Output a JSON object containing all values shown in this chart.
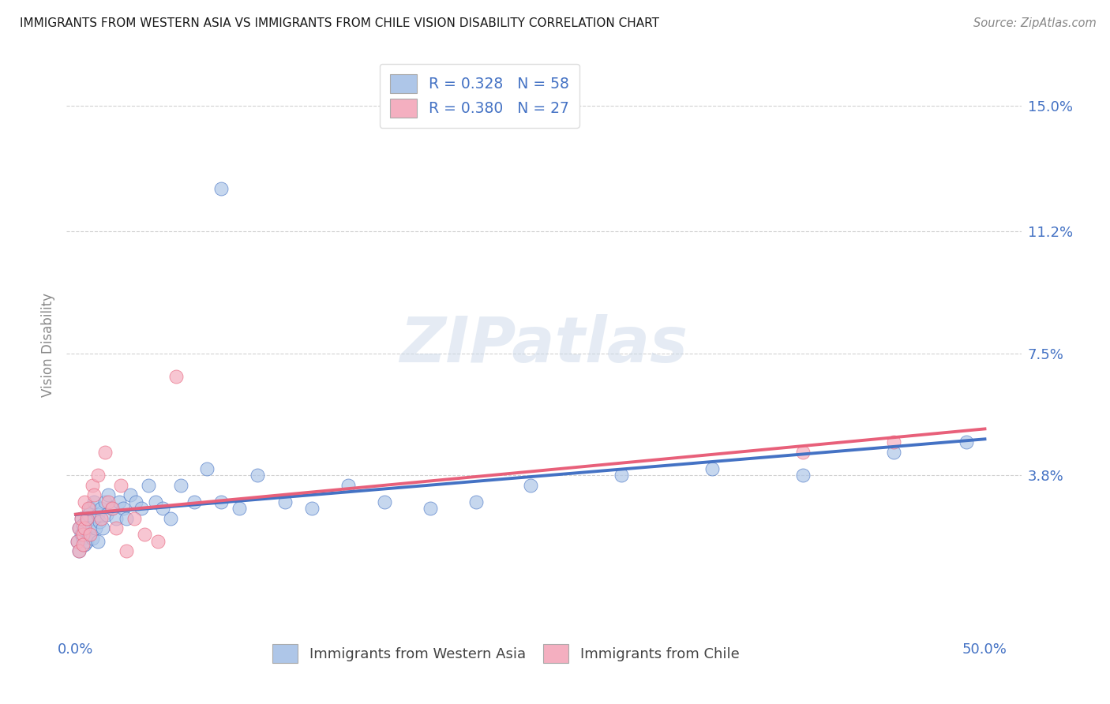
{
  "title": "IMMIGRANTS FROM WESTERN ASIA VS IMMIGRANTS FROM CHILE VISION DISABILITY CORRELATION CHART",
  "source": "Source: ZipAtlas.com",
  "ylabel": "Vision Disability",
  "ytick_labels": [
    "15.0%",
    "11.2%",
    "7.5%",
    "3.8%"
  ],
  "ytick_values": [
    0.15,
    0.112,
    0.075,
    0.038
  ],
  "xtick_labels": [
    "0.0%",
    "",
    "",
    "",
    "50.0%"
  ],
  "xtick_values": [
    0.0,
    0.125,
    0.25,
    0.375,
    0.5
  ],
  "xlim": [
    -0.005,
    0.52
  ],
  "ylim": [
    -0.01,
    0.165
  ],
  "legend_label1": "Immigrants from Western Asia",
  "legend_label2": "Immigrants from Chile",
  "R1": "0.328",
  "N1": "58",
  "R2": "0.380",
  "N2": "27",
  "color1": "#aec6e8",
  "color2": "#f4afc0",
  "line_color1": "#4472c4",
  "line_color2": "#e8607a",
  "title_color": "#1a1a1a",
  "axis_tick_color": "#4472c4",
  "ylabel_color": "#888888",
  "source_color": "#888888",
  "background_color": "#ffffff",
  "grid_color": "#cccccc",
  "watermark_zip_color": "#ccd9ea",
  "watermark_atlas_color": "#c0d0e5",
  "scatter1_x": [
    0.001,
    0.002,
    0.002,
    0.003,
    0.003,
    0.004,
    0.004,
    0.005,
    0.005,
    0.006,
    0.006,
    0.007,
    0.007,
    0.008,
    0.008,
    0.009,
    0.01,
    0.01,
    0.011,
    0.012,
    0.012,
    0.013,
    0.014,
    0.015,
    0.016,
    0.017,
    0.018,
    0.02,
    0.022,
    0.024,
    0.026,
    0.028,
    0.03,
    0.033,
    0.036,
    0.04,
    0.044,
    0.048,
    0.052,
    0.058,
    0.065,
    0.072,
    0.08,
    0.09,
    0.1,
    0.115,
    0.13,
    0.15,
    0.17,
    0.195,
    0.22,
    0.25,
    0.08,
    0.3,
    0.35,
    0.4,
    0.45,
    0.49
  ],
  "scatter1_y": [
    0.018,
    0.022,
    0.015,
    0.02,
    0.025,
    0.019,
    0.023,
    0.017,
    0.021,
    0.024,
    0.018,
    0.026,
    0.02,
    0.022,
    0.028,
    0.019,
    0.025,
    0.03,
    0.022,
    0.026,
    0.018,
    0.024,
    0.028,
    0.022,
    0.03,
    0.026,
    0.032,
    0.028,
    0.025,
    0.03,
    0.028,
    0.025,
    0.032,
    0.03,
    0.028,
    0.035,
    0.03,
    0.028,
    0.025,
    0.035,
    0.03,
    0.04,
    0.03,
    0.028,
    0.038,
    0.03,
    0.028,
    0.035,
    0.03,
    0.028,
    0.03,
    0.035,
    0.125,
    0.038,
    0.04,
    0.038,
    0.045,
    0.048
  ],
  "scatter2_x": [
    0.001,
    0.002,
    0.002,
    0.003,
    0.004,
    0.004,
    0.005,
    0.005,
    0.006,
    0.007,
    0.008,
    0.009,
    0.01,
    0.012,
    0.014,
    0.016,
    0.018,
    0.02,
    0.022,
    0.025,
    0.028,
    0.032,
    0.038,
    0.045,
    0.055,
    0.4,
    0.45
  ],
  "scatter2_y": [
    0.018,
    0.022,
    0.015,
    0.025,
    0.02,
    0.017,
    0.03,
    0.022,
    0.025,
    0.028,
    0.02,
    0.035,
    0.032,
    0.038,
    0.025,
    0.045,
    0.03,
    0.028,
    0.022,
    0.035,
    0.015,
    0.025,
    0.02,
    0.018,
    0.068,
    0.045,
    0.048
  ]
}
